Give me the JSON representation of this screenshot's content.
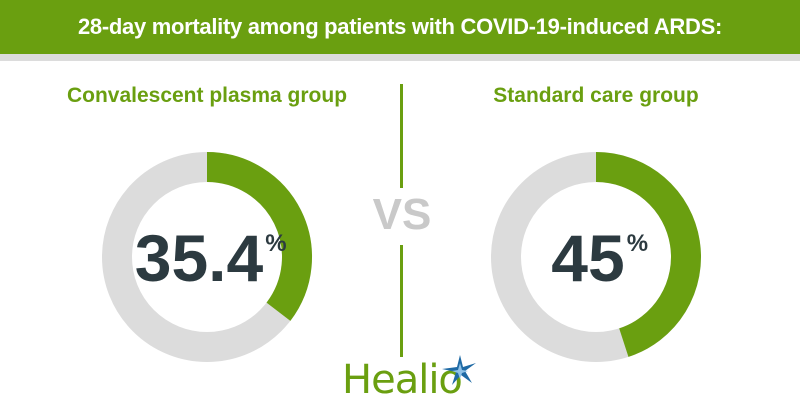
{
  "header": {
    "title": "28-day mortality among patients with COVID-19-induced ARDS:"
  },
  "vs_label": "VS",
  "logo": "Healio",
  "colors": {
    "accent": "#6a9f10",
    "track": "#dcdcdc",
    "text": "#2c3a40"
  },
  "chart_data": [
    {
      "type": "pie",
      "title": "Convalescent plasma group",
      "values": [
        35.4,
        64.6
      ],
      "label": "35.4",
      "unit": "%"
    },
    {
      "type": "pie",
      "title": "Standard care group",
      "values": [
        45,
        55
      ],
      "label": "45",
      "unit": "%"
    }
  ]
}
